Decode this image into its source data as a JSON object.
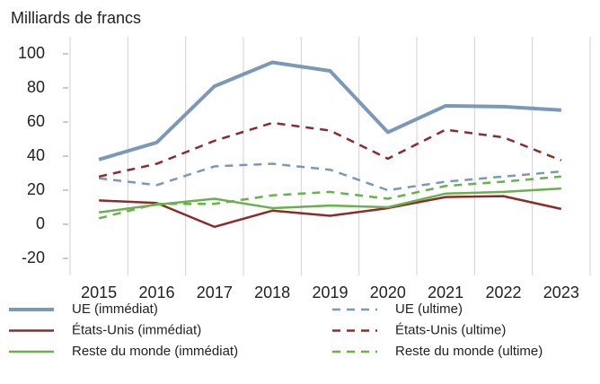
{
  "chart_data": {
    "type": "line",
    "y_label": "Milliards de francs",
    "categories": [
      "2015",
      "2016",
      "2017",
      "2018",
      "2019",
      "2020",
      "2021",
      "2022",
      "2023"
    ],
    "ylim": [
      -30,
      110
    ],
    "yticks": [
      -20,
      0,
      20,
      40,
      60,
      80,
      100
    ],
    "grid": "vertical",
    "series": [
      {
        "name": "UE (immédiat)",
        "color": "#7b98b8",
        "style": "solid",
        "values": [
          38,
          48,
          81,
          95,
          90,
          54,
          69.5,
          69,
          67
        ]
      },
      {
        "name": "UE (ultime)",
        "color": "#7b98b8",
        "style": "dashed",
        "values": [
          27,
          23,
          34,
          35.5,
          32,
          20,
          25,
          28,
          31
        ]
      },
      {
        "name": "États-Unis (immédiat)",
        "color": "#8b2b2b",
        "style": "solid",
        "values": [
          14,
          12.5,
          -1.5,
          8,
          5,
          9.5,
          16,
          16.5,
          9
        ]
      },
      {
        "name": "États-Unis (ultime)",
        "color": "#8b2b2b",
        "style": "dashed",
        "values": [
          28,
          35.5,
          49,
          59.5,
          55,
          38.5,
          55.5,
          51,
          37.5
        ]
      },
      {
        "name": "Reste du monde (immédiat)",
        "color": "#6ab04c",
        "style": "solid",
        "values": [
          7,
          11.5,
          15,
          9.5,
          11,
          10,
          18,
          19,
          21
        ]
      },
      {
        "name": "Reste du monde (ultime)",
        "color": "#6ab04c",
        "style": "dashed",
        "values": [
          3.5,
          12,
          12,
          17,
          19,
          15,
          22.5,
          25,
          28
        ]
      }
    ]
  }
}
